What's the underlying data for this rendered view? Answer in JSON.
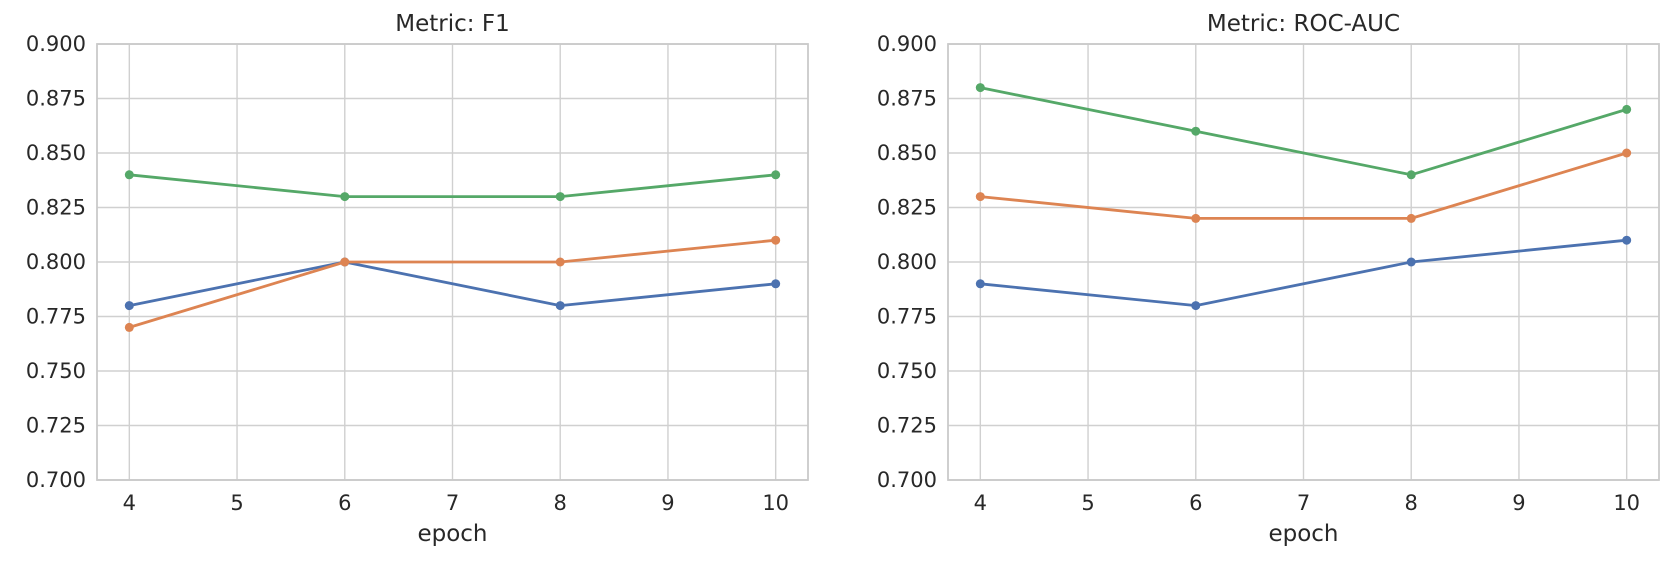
{
  "figure": {
    "background": "#ffffff",
    "panels": [
      "Metric: F1",
      "Metric: ROC-AUC"
    ]
  },
  "styles": {
    "grid_color": "#d0d0d0",
    "axes_edge_color": "#cacaca",
    "text_color": "#282828",
    "series_colors": {
      "blue": "#4C72B0",
      "orange": "#DD8452",
      "green": "#55A868"
    }
  },
  "chart_data": [
    {
      "type": "line",
      "title": "Metric: F1",
      "xlabel": "epoch",
      "ylabel": "",
      "x": [
        4,
        6,
        8,
        10
      ],
      "xticks": [
        4,
        5,
        6,
        7,
        8,
        9,
        10
      ],
      "yticks": [
        0.7,
        0.725,
        0.75,
        0.775,
        0.8,
        0.825,
        0.85,
        0.875,
        0.9
      ],
      "ytick_format_decimals": 3,
      "xlim": [
        3.7,
        10.3
      ],
      "ylim": [
        0.7,
        0.9
      ],
      "grid": true,
      "legend": "none",
      "markers": "circle",
      "series": [
        {
          "name": "series-blue",
          "color": "#4C72B0",
          "values": [
            0.78,
            0.8,
            0.78,
            0.79
          ]
        },
        {
          "name": "series-orange",
          "color": "#DD8452",
          "values": [
            0.77,
            0.8,
            0.8,
            0.81
          ]
        },
        {
          "name": "series-green",
          "color": "#55A868",
          "values": [
            0.84,
            0.83,
            0.83,
            0.84
          ]
        }
      ]
    },
    {
      "type": "line",
      "title": "Metric: ROC-AUC",
      "xlabel": "epoch",
      "ylabel": "",
      "x": [
        4,
        6,
        8,
        10
      ],
      "xticks": [
        4,
        5,
        6,
        7,
        8,
        9,
        10
      ],
      "yticks": [
        0.7,
        0.725,
        0.75,
        0.775,
        0.8,
        0.825,
        0.85,
        0.875,
        0.9
      ],
      "ytick_format_decimals": 3,
      "xlim": [
        3.7,
        10.3
      ],
      "ylim": [
        0.7,
        0.9
      ],
      "grid": true,
      "legend": "none",
      "markers": "circle",
      "series": [
        {
          "name": "series-blue",
          "color": "#4C72B0",
          "values": [
            0.79,
            0.78,
            0.8,
            0.81
          ]
        },
        {
          "name": "series-orange",
          "color": "#DD8452",
          "values": [
            0.83,
            0.82,
            0.82,
            0.85
          ]
        },
        {
          "name": "series-green",
          "color": "#55A868",
          "values": [
            0.88,
            0.86,
            0.84,
            0.87
          ]
        }
      ]
    }
  ]
}
